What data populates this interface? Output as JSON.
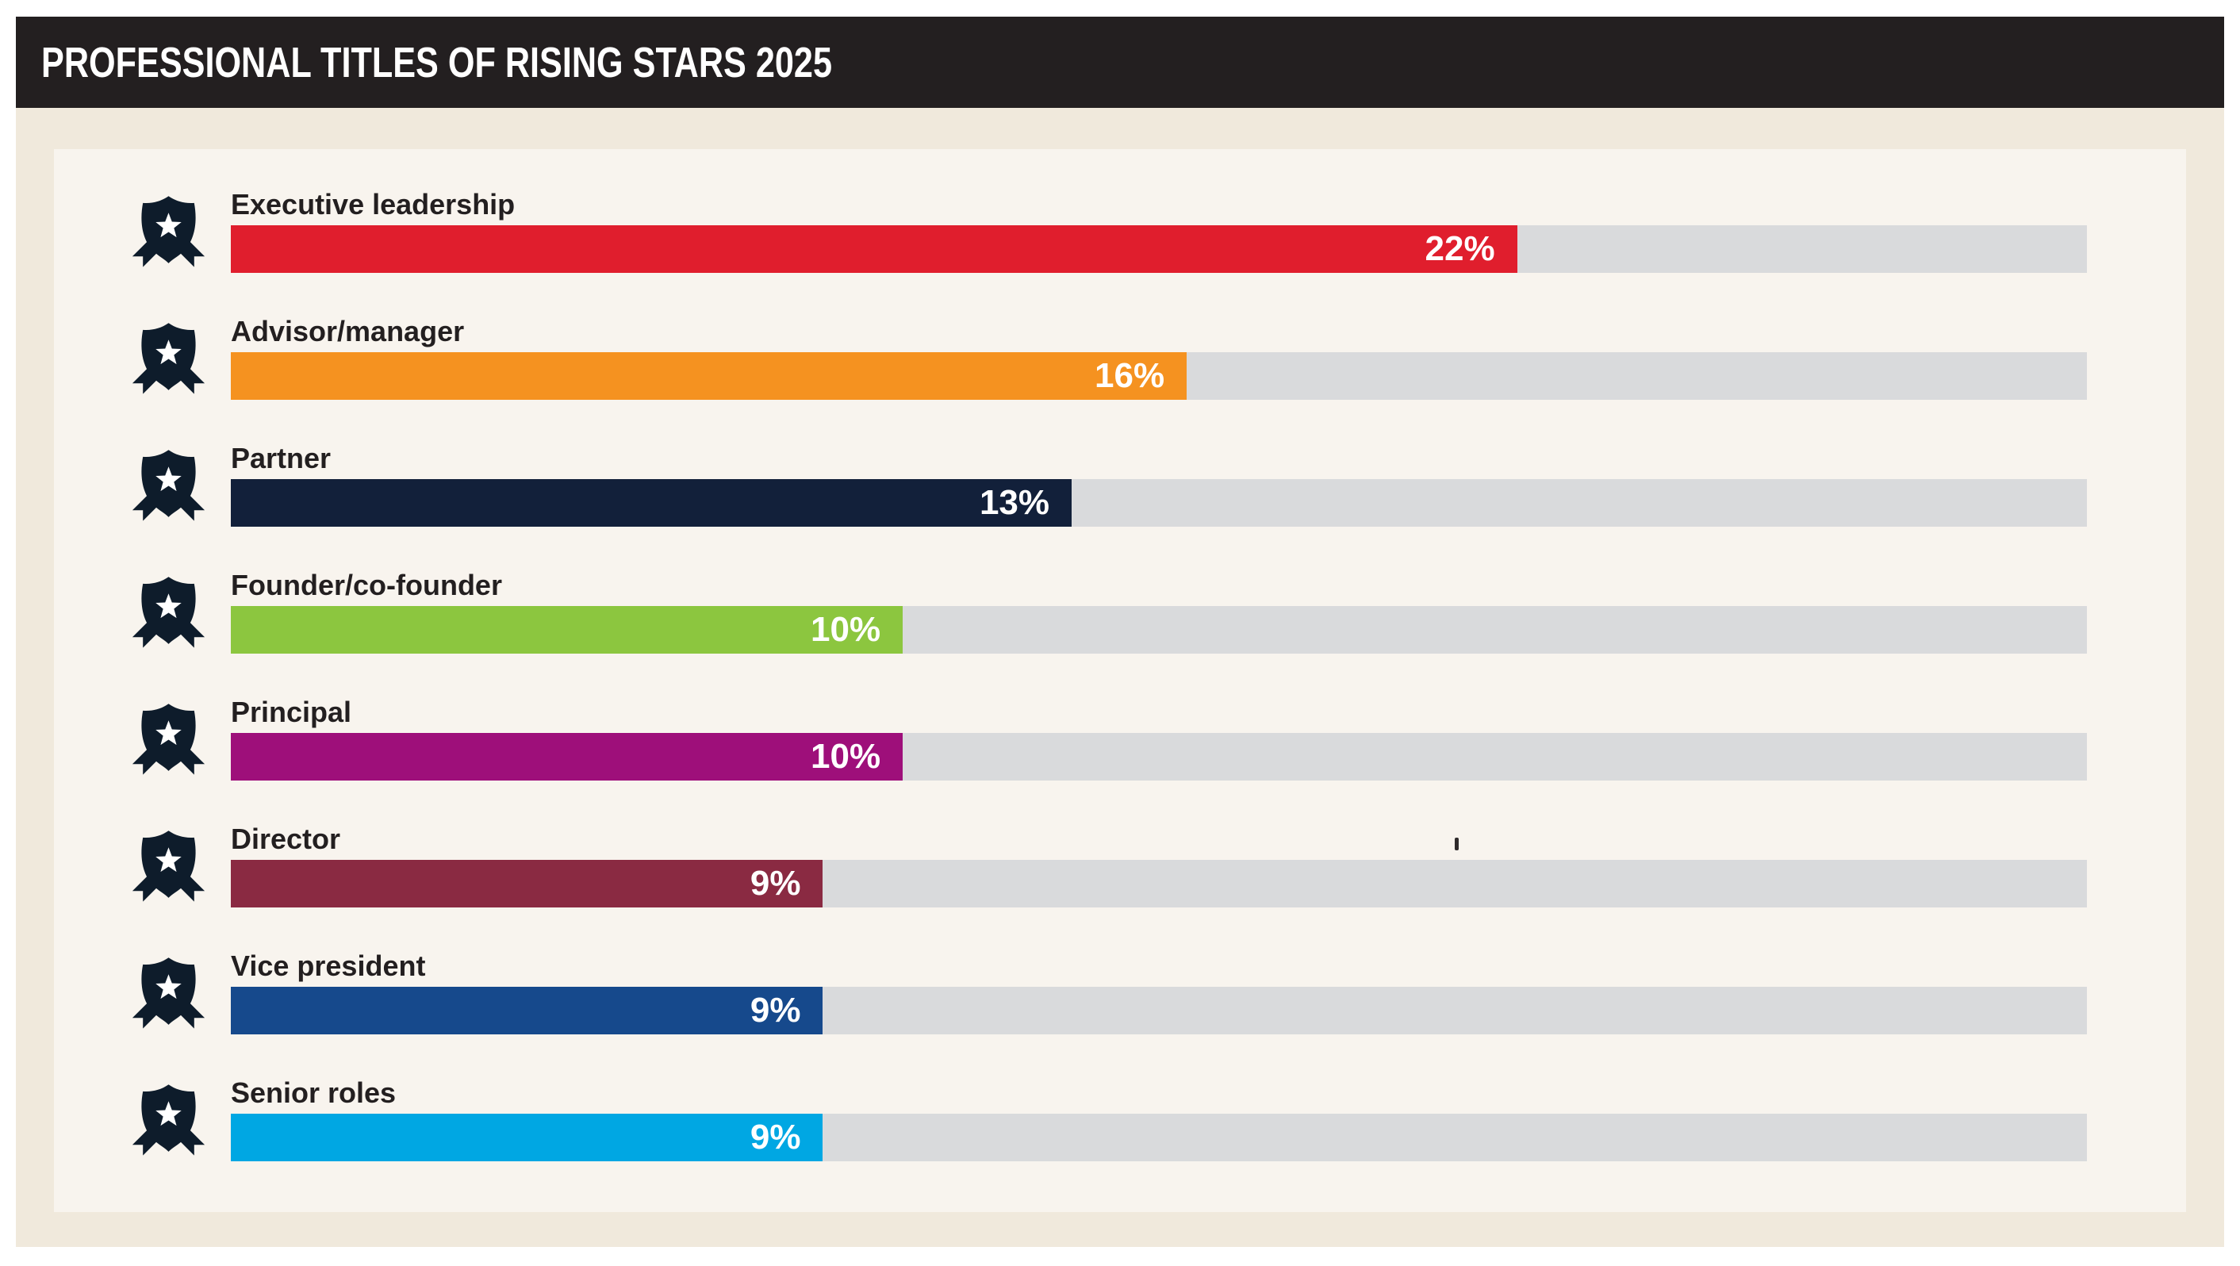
{
  "header": {
    "title": "PROFESSIONAL TITLES OF RISING STARS 2025"
  },
  "colors": {
    "header_bg": "#231f20",
    "outer_bg": "#f0e9dc",
    "panel_bg": "#f8f4ee",
    "track_bg": "#d9dadc",
    "label_text": "#231f20",
    "value_text": "#ffffff",
    "badge_icon": "#0e1c2b"
  },
  "icons": {
    "row_icon": "award-badge-icon",
    "row_icon_description": "dark navy shield badge with white star and two ribbon tails"
  },
  "chart_data": {
    "type": "bar",
    "orientation": "horizontal",
    "title": "PROFESSIONAL TITLES OF RISING STARS 2025",
    "unit": "%",
    "value_labels_inside_bars": true,
    "grid": false,
    "legend": false,
    "track_full_width": true,
    "categories": [
      "Executive leadership",
      "Advisor/manager",
      "Partner",
      "Founder/co-founder",
      "Principal",
      "Director",
      "Vice president",
      "Senior roles"
    ],
    "values": [
      22,
      16,
      13,
      10,
      10,
      9,
      9,
      9
    ],
    "rows": [
      {
        "label": "Executive leadership",
        "value": 22,
        "display": "22%",
        "color": "#e01e2d",
        "bar_pct_of_track": 69.3
      },
      {
        "label": "Advisor/manager",
        "value": 16,
        "display": "16%",
        "color": "#f59220",
        "bar_pct_of_track": 51.5
      },
      {
        "label": "Partner",
        "value": 13,
        "display": "13%",
        "color": "#12203a",
        "bar_pct_of_track": 45.3
      },
      {
        "label": "Founder/co-founder",
        "value": 10,
        "display": "10%",
        "color": "#8cc63f",
        "bar_pct_of_track": 36.2
      },
      {
        "label": "Principal",
        "value": 10,
        "display": "10%",
        "color": "#9e0f7a",
        "bar_pct_of_track": 36.2
      },
      {
        "label": "Director",
        "value": 9,
        "display": "9%",
        "color": "#8a2a42",
        "bar_pct_of_track": 31.9
      },
      {
        "label": "Vice president",
        "value": 9,
        "display": "9%",
        "color": "#16498c",
        "bar_pct_of_track": 31.9
      },
      {
        "label": "Senior roles",
        "value": 9,
        "display": "9%",
        "color": "#00a7e3",
        "bar_pct_of_track": 31.9
      }
    ]
  }
}
